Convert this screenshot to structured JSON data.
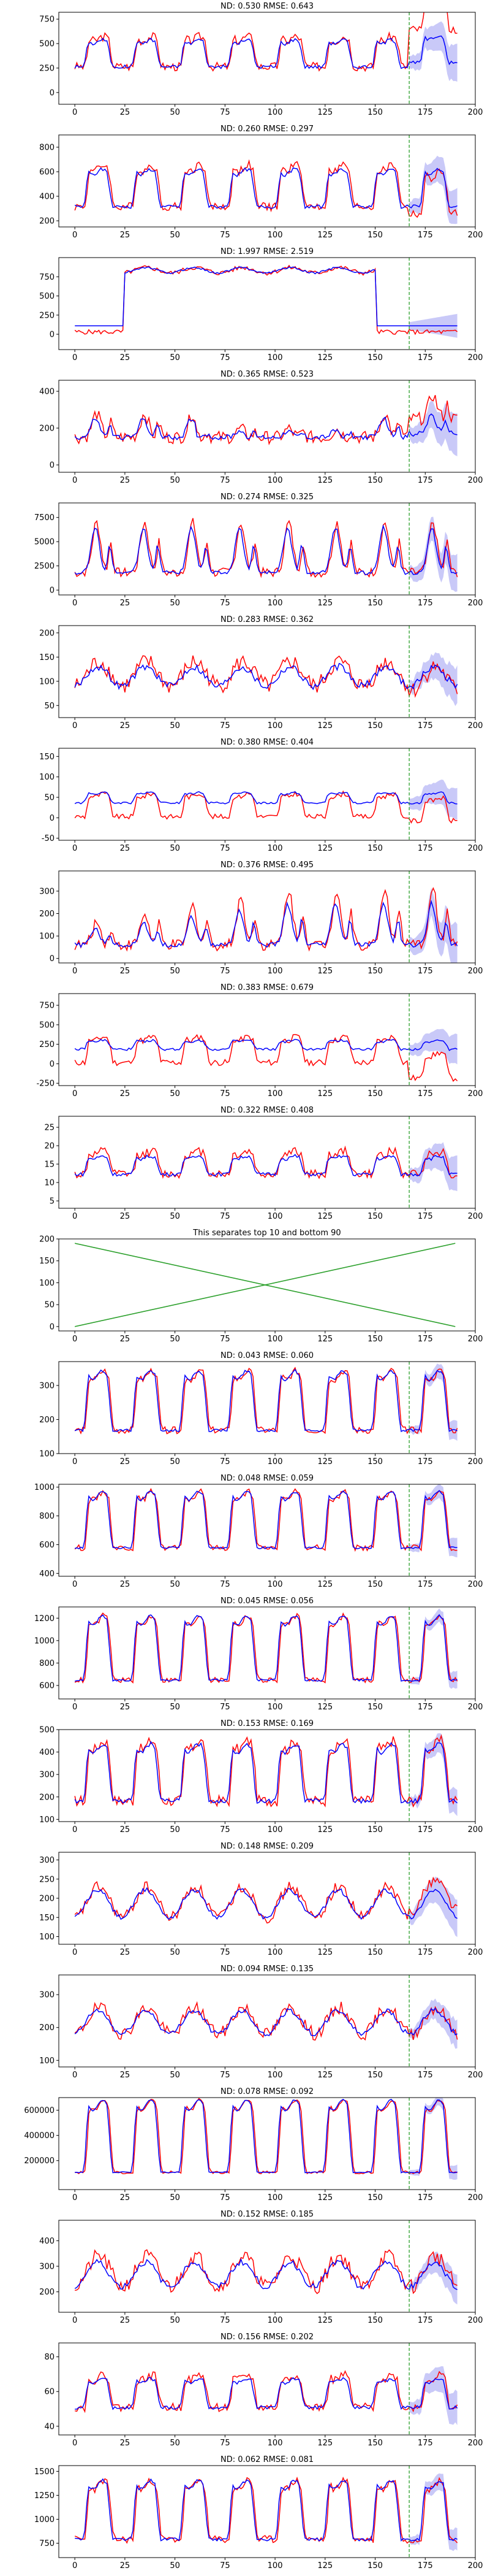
{
  "chart_data": [
    {
      "type": "line",
      "title": "ND:  0.530 RMSE:  0.643",
      "xlim": [
        -8,
        200
      ],
      "ylim": [
        -120,
        820
      ],
      "xticks": [
        0,
        25,
        50,
        75,
        100,
        125,
        150,
        175,
        200
      ],
      "yticks": [
        0,
        250,
        500,
        750
      ],
      "base": 250,
      "amp": 300,
      "period": 24,
      "shape": "pulse",
      "noise": 45,
      "forecast_start": 167,
      "band": 200,
      "actual_drift": 380,
      "pred_drift": 40,
      "blue_amp_scale": 0.9,
      "series": [
        {
          "name": "",
          "color": "#ff0000"
        },
        {
          "name": "",
          "color": "#0000ff"
        }
      ]
    },
    {
      "type": "line",
      "title": "ND:  0.260 RMSE:  0.297",
      "xlim": [
        -8,
        200
      ],
      "ylim": [
        150,
        900
      ],
      "xticks": [
        0,
        25,
        50,
        75,
        100,
        125,
        150,
        175,
        200
      ],
      "yticks": [
        200,
        400,
        600,
        800
      ],
      "base": 300,
      "amp": 330,
      "period": 24,
      "shape": "pulse",
      "noise": 35,
      "forecast_start": 167,
      "band": 150,
      "actual_drift": -60,
      "pred_drift": 0,
      "blue_amp_scale": 0.9,
      "series": [
        {
          "name": "",
          "color": "#ff0000"
        },
        {
          "name": "",
          "color": "#0000ff"
        }
      ]
    },
    {
      "type": "line",
      "title": "ND:  1.997 RMSE:  2.519",
      "xlim": [
        -8,
        200
      ],
      "ylim": [
        -200,
        1000
      ],
      "xticks": [
        0,
        25,
        50,
        75,
        100,
        125,
        150,
        175,
        200
      ],
      "yticks": [
        0,
        250,
        500,
        750
      ],
      "base": 800,
      "amp": 70,
      "period": 24,
      "shape": "sine",
      "noise": 30,
      "forecast_start": 167,
      "band": 160,
      "actual_drift": 0,
      "pred_drift": 0,
      "blue_amp_scale": 1.0,
      "plateau": [
        25,
        150
      ],
      "outside_level": 30,
      "series": [
        {
          "name": "",
          "color": "#ff0000"
        },
        {
          "name": "",
          "color": "#0000ff"
        }
      ]
    },
    {
      "type": "line",
      "title": "ND:  0.365 RMSE:  0.523",
      "xlim": [
        -8,
        200
      ],
      "ylim": [
        -40,
        460
      ],
      "xticks": [
        0,
        25,
        50,
        75,
        100,
        125,
        150,
        175,
        200
      ],
      "yticks": [
        0,
        200,
        400
      ],
      "base": 150,
      "amp": 130,
      "period": 24,
      "shape": "peak",
      "noise": 35,
      "forecast_start": 167,
      "band": 120,
      "actual_drift": 100,
      "pred_drift": 20,
      "blue_amp_scale": 0.8,
      "decay": true,
      "series": [
        {
          "name": "",
          "color": "#ff0000"
        },
        {
          "name": "",
          "color": "#0000ff"
        }
      ]
    },
    {
      "type": "line",
      "title": "ND:  0.274 RMSE:  0.325",
      "xlim": [
        -8,
        200
      ],
      "ylim": [
        -500,
        9000
      ],
      "xticks": [
        0,
        25,
        50,
        75,
        100,
        125,
        150,
        175,
        200
      ],
      "yticks": [
        0,
        2500,
        5000,
        7500
      ],
      "base": 1800,
      "amp": 5200,
      "period": 24,
      "shape": "peak",
      "noise": 500,
      "forecast_start": 167,
      "band": 2000,
      "actual_drift": 0,
      "pred_drift": 0,
      "blue_amp_scale": 0.9,
      "series": [
        {
          "name": "",
          "color": "#ff0000"
        },
        {
          "name": "",
          "color": "#0000ff"
        }
      ]
    },
    {
      "type": "line",
      "title": "ND:  0.283 RMSE:  0.362",
      "xlim": [
        -8,
        200
      ],
      "ylim": [
        25,
        215
      ],
      "xticks": [
        0,
        25,
        50,
        75,
        100,
        125,
        150,
        175,
        200
      ],
      "yticks": [
        50,
        100,
        150,
        200
      ],
      "base": 90,
      "amp": 50,
      "period": 24,
      "shape": "sine",
      "noise": 18,
      "forecast_start": 167,
      "band": 40,
      "actual_drift": -10,
      "pred_drift": 0,
      "blue_amp_scale": 0.8,
      "series": [
        {
          "name": "",
          "color": "#ff0000"
        },
        {
          "name": "",
          "color": "#0000ff"
        }
      ]
    },
    {
      "type": "line",
      "title": "ND:  0.380 RMSE:  0.404",
      "xlim": [
        -8,
        200
      ],
      "ylim": [
        -55,
        170
      ],
      "xticks": [
        0,
        25,
        50,
        75,
        100,
        125,
        150,
        175,
        200
      ],
      "yticks": [
        -50,
        0,
        50,
        100,
        150
      ],
      "base": 0,
      "amp": 55,
      "period": 24,
      "shape": "pulse",
      "noise": 6,
      "forecast_start": 167,
      "band": 40,
      "actual_drift": -10,
      "pred_drift": 0,
      "blue_amp_scale": 0.45,
      "blue_offset": 35,
      "series": [
        {
          "name": "",
          "color": "#ff0000"
        },
        {
          "name": "",
          "color": "#0000ff"
        }
      ]
    },
    {
      "type": "line",
      "title": "ND:  0.376 RMSE:  0.495",
      "xlim": [
        -8,
        200
      ],
      "ylim": [
        -20,
        390
      ],
      "xticks": [
        0,
        25,
        50,
        75,
        100,
        125,
        150,
        175,
        200
      ],
      "yticks": [
        0,
        100,
        200,
        300
      ],
      "base": 60,
      "amp": 250,
      "period": 24,
      "shape": "peak",
      "noise": 25,
      "forecast_start": 167,
      "band": 100,
      "actual_drift": 0,
      "pred_drift": 0,
      "blue_amp_scale": 0.75,
      "grow": true,
      "series": [
        {
          "name": "",
          "color": "#ff0000"
        },
        {
          "name": "",
          "color": "#0000ff"
        }
      ]
    },
    {
      "type": "line",
      "title": "ND:  0.383 RMSE:  0.679",
      "xlim": [
        -8,
        200
      ],
      "ylim": [
        -280,
        900
      ],
      "xticks": [
        0,
        25,
        50,
        75,
        100,
        125,
        150,
        175,
        200
      ],
      "yticks": [
        -250,
        0,
        250,
        500,
        750
      ],
      "base": 0,
      "amp": 320,
      "period": 24,
      "shape": "pulse",
      "noise": 40,
      "forecast_start": 167,
      "band": 200,
      "actual_drift": -200,
      "pred_drift": 0,
      "blue_amp_scale": 0.35,
      "blue_offset": 180,
      "series": [
        {
          "name": "",
          "color": "#ff0000"
        },
        {
          "name": "",
          "color": "#0000ff"
        }
      ]
    },
    {
      "type": "line",
      "title": "ND:  0.322 RMSE:  0.408",
      "xlim": [
        -8,
        200
      ],
      "ylim": [
        3,
        28
      ],
      "xticks": [
        0,
        25,
        50,
        75,
        100,
        125,
        150,
        175,
        200
      ],
      "yticks": [
        5,
        10,
        15,
        20,
        25
      ],
      "base": 12,
      "amp": 6,
      "period": 24,
      "shape": "pulse",
      "noise": 1.2,
      "forecast_start": 167,
      "band": 5,
      "actual_drift": 0,
      "pred_drift": 0,
      "blue_amp_scale": 0.8,
      "series": [
        {
          "name": "",
          "color": "#ff0000"
        },
        {
          "name": "",
          "color": "#0000ff"
        }
      ]
    },
    {
      "type": "line",
      "title": "This separates top 10 and bottom 90",
      "xlim": [
        -8,
        200
      ],
      "ylim": [
        -10,
        200
      ],
      "xticks": [
        0,
        25,
        50,
        75,
        100,
        125,
        150,
        175,
        200
      ],
      "yticks": [
        0,
        50,
        100,
        150,
        200
      ],
      "separator": true,
      "lines": [
        {
          "x": [
            0,
            190
          ],
          "y": [
            190,
            0
          ]
        },
        {
          "x": [
            0,
            190
          ],
          "y": [
            0,
            190
          ]
        }
      ],
      "series": [
        {
          "name": "",
          "color": "#2ca02c"
        }
      ]
    },
    {
      "type": "line",
      "title": "ND:  0.043 RMSE:  0.060",
      "xlim": [
        -8,
        200
      ],
      "ylim": [
        100,
        370
      ],
      "xticks": [
        0,
        25,
        50,
        75,
        100,
        125,
        150,
        175,
        200
      ],
      "yticks": [
        100,
        200,
        300
      ],
      "base": 160,
      "amp": 170,
      "period": 24,
      "shape": "pulse",
      "noise": 10,
      "forecast_start": 167,
      "band": 30,
      "actual_drift": 0,
      "pred_drift": 0,
      "blue_amp_scale": 1.0,
      "series": [
        {
          "name": "",
          "color": "#ff0000"
        },
        {
          "name": "",
          "color": "#0000ff"
        }
      ]
    },
    {
      "type": "line",
      "title": "ND:  0.048 RMSE:  0.059",
      "xlim": [
        -8,
        200
      ],
      "ylim": [
        380,
        1020
      ],
      "xticks": [
        0,
        25,
        50,
        75,
        100,
        125,
        150,
        175,
        200
      ],
      "yticks": [
        400,
        600,
        800,
        1000
      ],
      "base": 560,
      "amp": 380,
      "period": 24,
      "shape": "pulse",
      "noise": 20,
      "forecast_start": 167,
      "band": 70,
      "actual_drift": 0,
      "pred_drift": 0,
      "blue_amp_scale": 1.0,
      "series": [
        {
          "name": "",
          "color": "#ff0000"
        },
        {
          "name": "",
          "color": "#0000ff"
        }
      ]
    },
    {
      "type": "line",
      "title": "ND:  0.045 RMSE:  0.056",
      "xlim": [
        -8,
        200
      ],
      "ylim": [
        480,
        1300
      ],
      "xticks": [
        0,
        25,
        50,
        75,
        100,
        125,
        150,
        175,
        200
      ],
      "yticks": [
        600,
        800,
        1000,
        1200
      ],
      "base": 620,
      "amp": 560,
      "period": 24,
      "shape": "pulse",
      "noise": 25,
      "forecast_start": 167,
      "band": 80,
      "actual_drift": 0,
      "pred_drift": 0,
      "blue_amp_scale": 1.0,
      "series": [
        {
          "name": "",
          "color": "#ff0000"
        },
        {
          "name": "",
          "color": "#0000ff"
        }
      ]
    },
    {
      "type": "line",
      "title": "ND:  0.153 RMSE:  0.169",
      "xlim": [
        -8,
        200
      ],
      "ylim": [
        90,
        500
      ],
      "xticks": [
        0,
        25,
        50,
        75,
        100,
        125,
        150,
        175,
        200
      ],
      "yticks": [
        100,
        200,
        300,
        400,
        500
      ],
      "base": 170,
      "amp": 260,
      "period": 24,
      "shape": "pulse",
      "noise": 25,
      "forecast_start": 167,
      "band": 60,
      "actual_drift": 0,
      "pred_drift": 0,
      "blue_amp_scale": 0.95,
      "series": [
        {
          "name": "",
          "color": "#ff0000"
        },
        {
          "name": "",
          "color": "#0000ff"
        }
      ]
    },
    {
      "type": "line",
      "title": "ND:  0.148 RMSE:  0.209",
      "xlim": [
        -8,
        200
      ],
      "ylim": [
        80,
        320
      ],
      "xticks": [
        0,
        25,
        50,
        75,
        100,
        125,
        150,
        175,
        200
      ],
      "yticks": [
        100,
        150,
        200,
        250,
        300
      ],
      "base": 150,
      "amp": 80,
      "period": 24,
      "shape": "sine",
      "noise": 15,
      "forecast_start": 167,
      "band": 50,
      "actual_drift": 20,
      "pred_drift": 0,
      "blue_amp_scale": 0.9,
      "series": [
        {
          "name": "",
          "color": "#ff0000"
        },
        {
          "name": "",
          "color": "#0000ff"
        }
      ]
    },
    {
      "type": "line",
      "title": "ND:  0.094 RMSE:  0.135",
      "xlim": [
        -8,
        200
      ],
      "ylim": [
        80,
        360
      ],
      "xticks": [
        0,
        25,
        50,
        75,
        100,
        125,
        150,
        175,
        200
      ],
      "yticks": [
        100,
        200,
        300
      ],
      "base": 180,
      "amp": 80,
      "period": 24,
      "shape": "sine",
      "noise": 20,
      "forecast_start": 167,
      "band": 45,
      "actual_drift": 0,
      "pred_drift": 0,
      "blue_amp_scale": 0.9,
      "series": [
        {
          "name": "",
          "color": "#ff0000"
        },
        {
          "name": "",
          "color": "#0000ff"
        }
      ]
    },
    {
      "type": "line",
      "title": "ND:  0.078 RMSE:  0.092",
      "xlim": [
        -8,
        200
      ],
      "ylim": [
        -30000,
        700000
      ],
      "xticks": [
        0,
        25,
        50,
        75,
        100,
        125,
        150,
        175,
        200
      ],
      "yticks": [
        200000,
        400000,
        600000
      ],
      "base": 80000,
      "amp": 560000,
      "period": 24,
      "shape": "pulse",
      "noise": 12000,
      "forecast_start": 167,
      "band": 60000,
      "actual_drift": 0,
      "pred_drift": 0,
      "blue_amp_scale": 1.0,
      "series": [
        {
          "name": "",
          "color": "#ff0000"
        },
        {
          "name": "",
          "color": "#0000ff"
        }
      ]
    },
    {
      "type": "line",
      "title": "ND:  0.152 RMSE:  0.185",
      "xlim": [
        -8,
        200
      ],
      "ylim": [
        120,
        480
      ],
      "xticks": [
        0,
        25,
        50,
        75,
        100,
        125,
        150,
        175,
        200
      ],
      "yticks": [
        200,
        300,
        400
      ],
      "base": 220,
      "amp": 120,
      "period": 24,
      "shape": "sine",
      "noise": 30,
      "forecast_start": 167,
      "band": 60,
      "actual_drift": 0,
      "pred_drift": 0,
      "blue_amp_scale": 0.8,
      "series": [
        {
          "name": "",
          "color": "#ff0000"
        },
        {
          "name": "",
          "color": "#0000ff"
        }
      ]
    },
    {
      "type": "line",
      "title": "ND:  0.156 RMSE:  0.202",
      "xlim": [
        -8,
        200
      ],
      "ylim": [
        35,
        88
      ],
      "xticks": [
        0,
        25,
        50,
        75,
        100,
        125,
        150,
        175,
        200
      ],
      "yticks": [
        40,
        60,
        80
      ],
      "base": 50,
      "amp": 18,
      "period": 24,
      "shape": "pulse",
      "noise": 2.5,
      "forecast_start": 167,
      "band": 10,
      "actual_drift": 0,
      "pred_drift": 0,
      "blue_amp_scale": 0.9,
      "series": [
        {
          "name": "",
          "color": "#ff0000"
        },
        {
          "name": "",
          "color": "#0000ff"
        }
      ]
    },
    {
      "type": "line",
      "title": "ND:  0.062 RMSE:  0.081",
      "xlim": [
        -8,
        200
      ],
      "ylim": [
        600,
        1560
      ],
      "xticks": [
        0,
        25,
        50,
        75,
        100,
        125,
        150,
        175,
        200
      ],
      "yticks": [
        750,
        1000,
        1250,
        1500
      ],
      "base": 760,
      "amp": 600,
      "period": 24,
      "shape": "pulse",
      "noise": 40,
      "forecast_start": 167,
      "band": 120,
      "actual_drift": 0,
      "pred_drift": 0,
      "blue_amp_scale": 1.0,
      "series": [
        {
          "name": "",
          "color": "#ff0000"
        },
        {
          "name": "",
          "color": "#0000ff"
        }
      ]
    }
  ],
  "colors": {
    "actual": "#ff0000",
    "predicted": "#0000ff",
    "band": "#b7b7f5",
    "forecast_marker": "#2ca02c",
    "separator": "#2ca02c"
  }
}
